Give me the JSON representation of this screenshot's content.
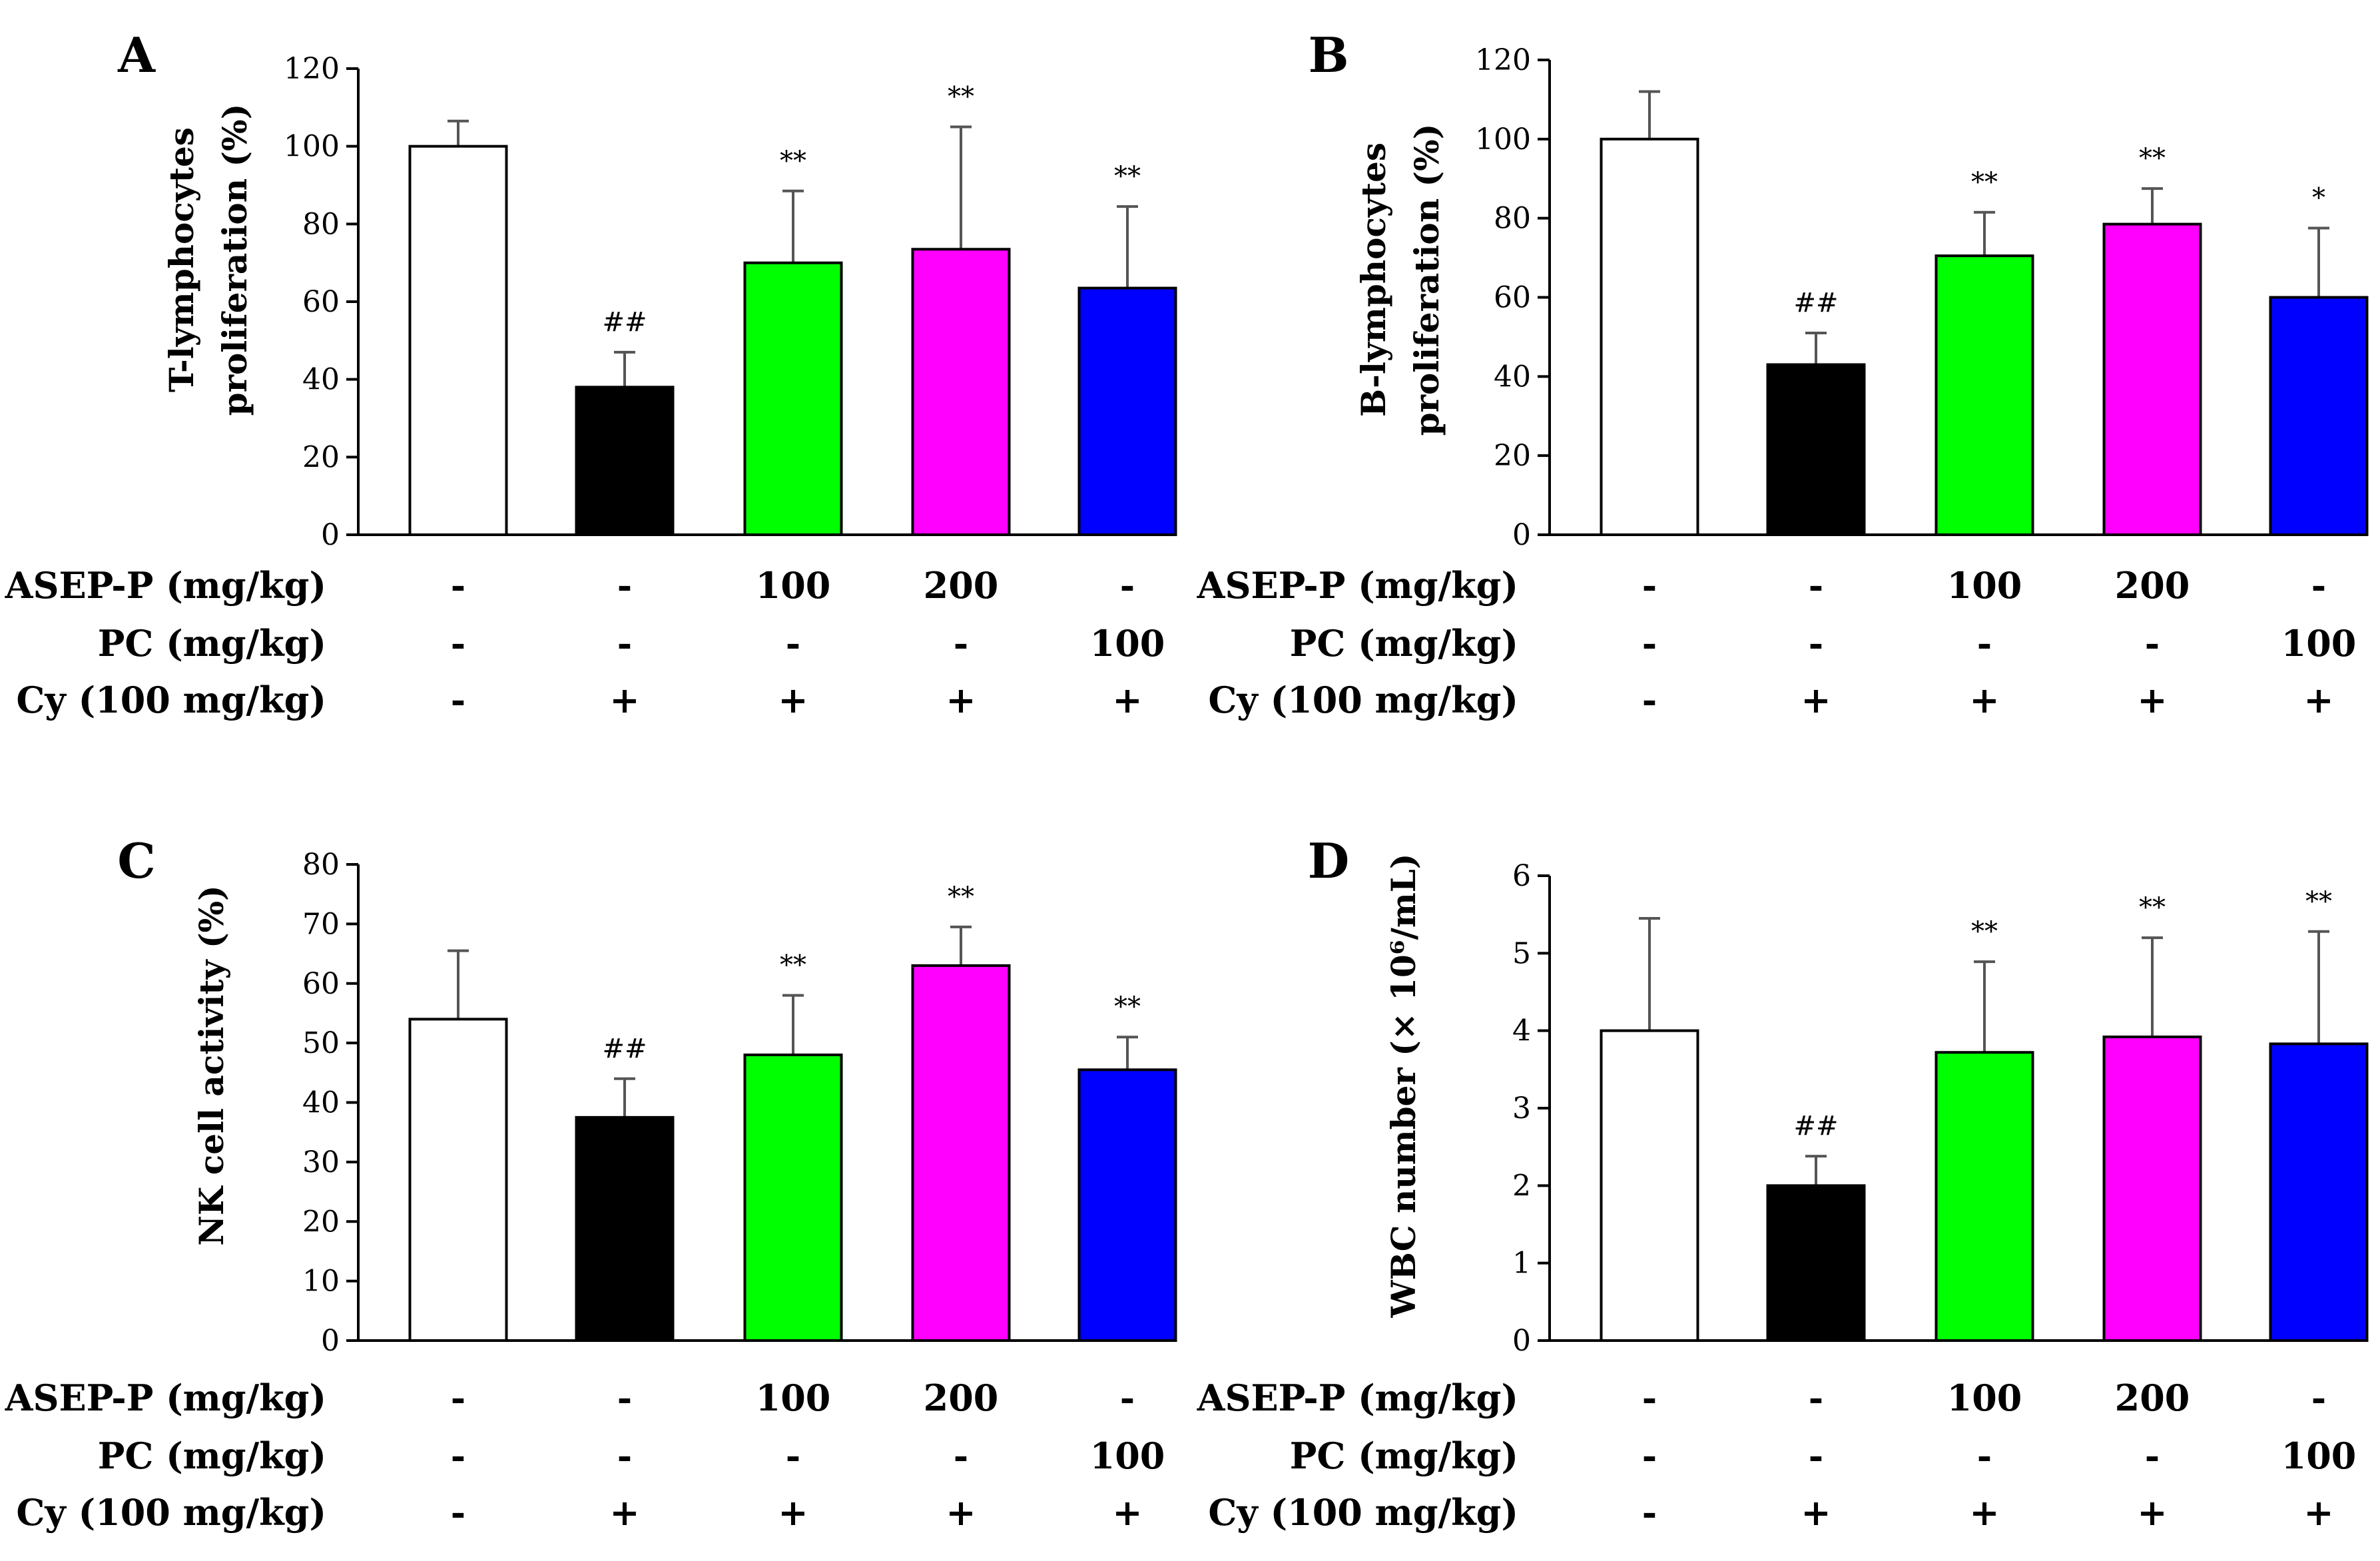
{
  "row_labels": [
    "ASEP-P (mg/kg)",
    "PC (mg/kg)",
    "Cy (100 mg/kg)"
  ],
  "conditions": [
    [
      "-",
      "-",
      "100",
      "200",
      "-"
    ],
    [
      "-",
      "-",
      "-",
      "-",
      "100"
    ],
    [
      "-",
      "+",
      "+",
      "+",
      "+"
    ]
  ],
  "bar_colors": [
    "#ffffff",
    "#000000",
    "#00ff00",
    "#ff00ff",
    "#0000ff"
  ],
  "chart_data": [
    {
      "panel": "A",
      "type": "bar",
      "ylabel_lines": [
        "T-lymphocytes",
        "proliferation (%)"
      ],
      "ylim": [
        0,
        120
      ],
      "yticks": [
        0,
        20,
        40,
        60,
        80,
        100,
        120
      ],
      "values": [
        100,
        38,
        70,
        73.5,
        63.5
      ],
      "errors": [
        6.5,
        9,
        18.5,
        31.5,
        21
      ],
      "annotations": [
        "",
        "##",
        "**",
        "**",
        "**"
      ]
    },
    {
      "panel": "B",
      "type": "bar",
      "ylabel_lines": [
        "B-lymphocytes",
        "proliferation (%)"
      ],
      "ylim": [
        0,
        120
      ],
      "yticks": [
        0,
        20,
        40,
        60,
        80,
        100,
        120
      ],
      "values": [
        100,
        43,
        70.5,
        78.5,
        60
      ],
      "errors": [
        12,
        8,
        11,
        9,
        17.5
      ],
      "annotations": [
        "",
        "##",
        "**",
        "**",
        "*"
      ]
    },
    {
      "panel": "C",
      "type": "bar",
      "ylabel_lines": [
        "NK cell activity (%)"
      ],
      "ylim": [
        0,
        80
      ],
      "yticks": [
        0,
        10,
        20,
        30,
        40,
        50,
        60,
        70,
        80
      ],
      "values": [
        54,
        37.5,
        48,
        63,
        45.5
      ],
      "errors": [
        11.5,
        6.5,
        10,
        6.5,
        5.5
      ],
      "annotations": [
        "",
        "##",
        "**",
        "**",
        "**"
      ]
    },
    {
      "panel": "D",
      "type": "bar",
      "ylabel_lines": [
        "WBC number (× 10⁶/mL)"
      ],
      "ylim": [
        0,
        6
      ],
      "yticks": [
        0,
        1,
        2,
        3,
        4,
        5,
        6
      ],
      "values": [
        4,
        2,
        3.72,
        3.92,
        3.83
      ],
      "errors": [
        1.45,
        0.38,
        1.17,
        1.28,
        1.45
      ],
      "annotations": [
        "",
        "##",
        "**",
        "**",
        "**"
      ]
    }
  ]
}
